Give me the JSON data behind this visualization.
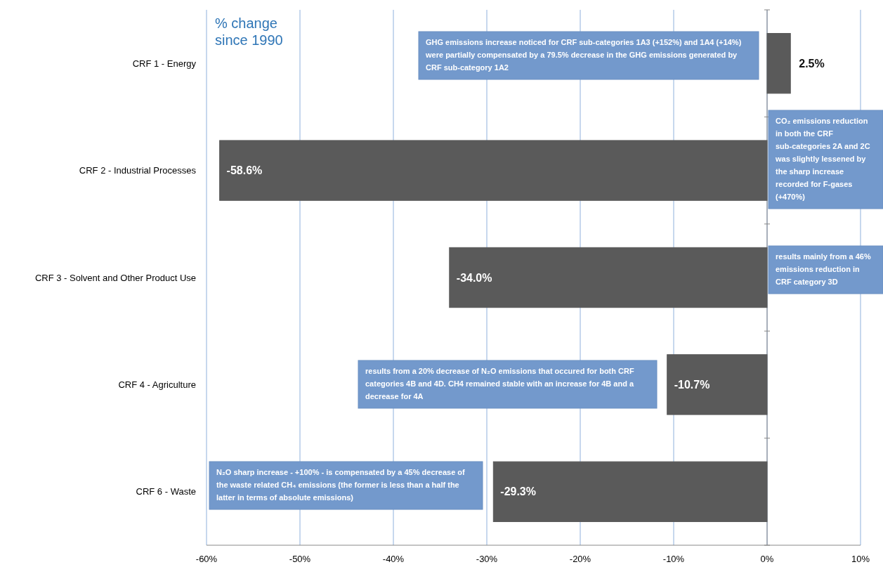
{
  "chart_data": {
    "type": "bar",
    "orientation": "horizontal",
    "title": "% change since 1990",
    "categories": [
      "CRF 1 - Energy",
      "CRF 2 - Industrial Processes",
      "CRF 3 - Solvent and Other Product Use",
      "CRF 4 - Agriculture",
      "CRF 6 - Waste"
    ],
    "values": [
      2.5,
      -58.6,
      -34.0,
      -10.7,
      -29.3
    ],
    "color": "#5a5a5a",
    "value_labels": [
      "2.5%",
      "-58.6%",
      "-34.0%",
      "-10.7%",
      "-29.3%"
    ],
    "xlim": [
      -60,
      10
    ],
    "xticks": [
      {
        "value": -60,
        "label": "-60%"
      },
      {
        "value": -50,
        "label": "-50%"
      },
      {
        "value": -40,
        "label": "-40%"
      },
      {
        "value": -30,
        "label": "-30%"
      },
      {
        "value": -20,
        "label": "-20%"
      },
      {
        "value": -10,
        "label": "-10%"
      },
      {
        "value": 0,
        "label": "0%"
      },
      {
        "value": 10,
        "label": "10%"
      }
    ],
    "grid": "x",
    "annotations": [
      "GHG emissions increase noticed for CRF sub-categories 1A3 (+152%) and 1A4 (+14%) were partially compensated by a 79.5% decrease in the GHG emissions generated by CRF sub-category 1A2",
      "CO₂ emissions reduction in both the CRF sub-categories 2A and 2C was slightly lessened by the sharp increase recorded for F-gases (+470%)",
      "results mainly from a 46% emissions reduction in CRF category 3D",
      "results from a 20% decrease of N₂O emissions that occured for both CRF categories 4B and 4D. CH4 remained stable with an increase for 4B and a decrease for 4A",
      "N₂O sharp increase - +100% - is compensated by a 45% decrease of the waste related CH₄ emissions (the former is less than a half the latter in terms of absolute emissions)"
    ]
  }
}
